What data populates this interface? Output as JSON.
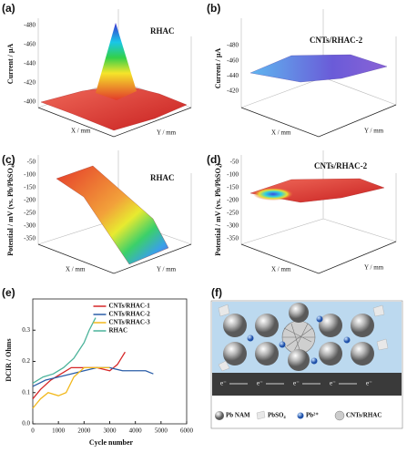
{
  "surfaces": [
    {
      "label": "(a)",
      "title": "RHAC",
      "zlabel": "Current / μA",
      "zticks": [
        "-480",
        "-460",
        "-440",
        "-420",
        "-400"
      ],
      "xlabel": "X / mm",
      "ylabel": "Y / mm"
    },
    {
      "label": "(b)",
      "title": "CNTs/RHAC-2",
      "zlabel": "Current / μA",
      "zticks": [
        "-480",
        "-460",
        "-440",
        "-420"
      ],
      "xlabel": "X / mm",
      "ylabel": "Y / mm"
    },
    {
      "label": "(c)",
      "title": "RHAC",
      "zlabel": "Potential / mV (vs. Pb/PbSO₄)",
      "zticks": [
        "-50",
        "-100",
        "-150",
        "-200",
        "-250",
        "-300",
        "-350"
      ],
      "xlabel": "X / mm",
      "ylabel": "Y / mm"
    },
    {
      "label": "(d)",
      "title": "CNTs/RHAC-2",
      "zlabel": "Potential / mV (vs. Pb/PbSO₄)",
      "zticks": [
        "-50",
        "-100",
        "-150",
        "-200",
        "-250",
        "-300",
        "-350"
      ],
      "xlabel": "X / mm",
      "ylabel": "Y / mm"
    }
  ],
  "chart_data": {
    "type": "line",
    "panel_label": "(e)",
    "xlabel": "Cycle number",
    "ylabel": "DCIR / Ohms",
    "xlim": [
      0,
      6000
    ],
    "xticks": [
      0,
      1000,
      2000,
      3000,
      4000,
      5000,
      6000
    ],
    "ylim": [
      0,
      0.4
    ],
    "yticks": [
      {
        "value": 0,
        "label": "0.0"
      },
      {
        "value": 0.1,
        "label": "0.1"
      },
      {
        "value": 0.2,
        "label": "0.2"
      },
      {
        "value": 0.3,
        "label": "0.3"
      }
    ],
    "legend": "upper center",
    "series": [
      {
        "name": "CNTs/RHAC-1",
        "color": "#d62728",
        "x": [
          0,
          300,
          700,
          1100,
          1500,
          2000,
          2500,
          3000,
          3300,
          3450,
          3600
        ],
        "values": [
          0.08,
          0.11,
          0.14,
          0.16,
          0.18,
          0.18,
          0.18,
          0.17,
          0.19,
          0.21,
          0.23
        ]
      },
      {
        "name": "CNTs/RHAC-2",
        "color": "#2b5ea8",
        "x": [
          0,
          500,
          1000,
          1500,
          2000,
          2500,
          3000,
          3500,
          4000,
          4400,
          4700
        ],
        "values": [
          0.12,
          0.14,
          0.15,
          0.16,
          0.17,
          0.18,
          0.18,
          0.17,
          0.17,
          0.17,
          0.16
        ]
      },
      {
        "name": "CNTs/RHAC-3",
        "color": "#f2b81b",
        "x": [
          0,
          300,
          600,
          1000,
          1300,
          1600,
          2000,
          2500,
          3000
        ],
        "values": [
          0.05,
          0.08,
          0.1,
          0.09,
          0.1,
          0.15,
          0.18,
          0.18,
          0.18
        ]
      },
      {
        "name": "RHAC",
        "color": "#4bb39a",
        "x": [
          0,
          400,
          800,
          1200,
          1600,
          2000,
          2200,
          2450
        ],
        "values": [
          0.13,
          0.15,
          0.16,
          0.18,
          0.21,
          0.26,
          0.3,
          0.34
        ]
      }
    ]
  },
  "schematic": {
    "label": "(f)",
    "electrons": [
      "e⁻",
      "e⁻",
      "e⁻",
      "e⁻",
      "e⁻"
    ],
    "legend": [
      "Pb NAM",
      "PbSO₄",
      "Pb²⁺",
      "CNTs/RHAC"
    ]
  }
}
